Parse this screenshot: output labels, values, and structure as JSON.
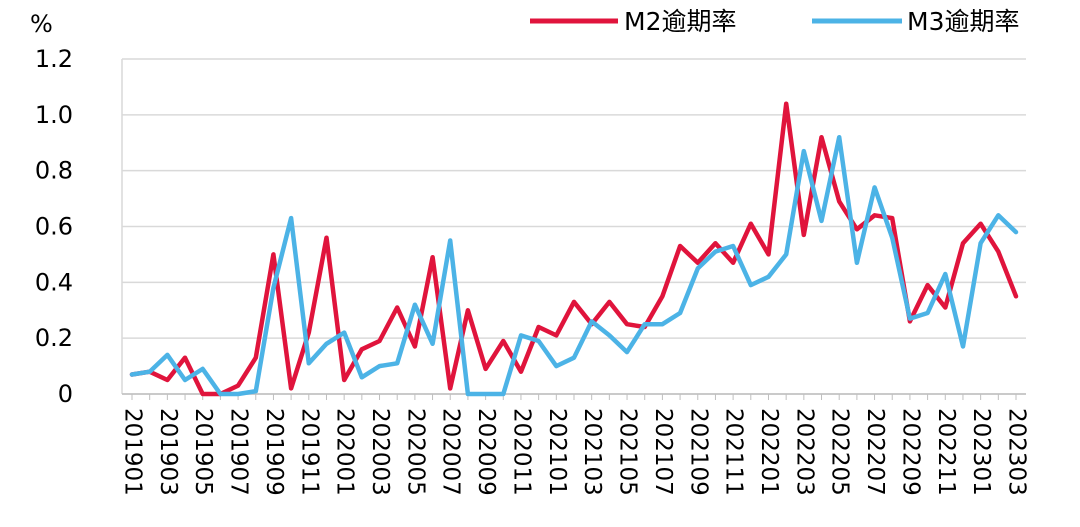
{
  "chart_data": {
    "type": "line",
    "ylabel": "%",
    "ylim": [
      0,
      1.2
    ],
    "yticks": [
      "0",
      "0.2",
      "0.4",
      "0.6",
      "0.8",
      "1.0",
      "1.2"
    ],
    "grid": "horizontal",
    "legend_position": "top-right",
    "x": [
      "201901",
      "201902",
      "201903",
      "201904",
      "201905",
      "201906",
      "201907",
      "201908",
      "201909",
      "201910",
      "201911",
      "201912",
      "202001",
      "202002",
      "202003",
      "202004",
      "202005",
      "202006",
      "202007",
      "202008",
      "202009",
      "202010",
      "202011",
      "202012",
      "202101",
      "202102",
      "202103",
      "202104",
      "202105",
      "202106",
      "202107",
      "202108",
      "202109",
      "202110",
      "202111",
      "202112",
      "202201",
      "202202",
      "202203",
      "202204",
      "202205",
      "202206",
      "202207",
      "202208",
      "202209",
      "202210",
      "202211",
      "202212",
      "202301",
      "202302",
      "202303"
    ],
    "xtick_labels": [
      "201901",
      "201903",
      "201905",
      "201907",
      "201909",
      "201911",
      "202001",
      "202003",
      "202005",
      "202007",
      "202009",
      "202011",
      "202101",
      "202103",
      "202105",
      "202107",
      "202109",
      "202111",
      "202201",
      "202203",
      "202205",
      "202207",
      "202209",
      "202211",
      "202301",
      "202303"
    ],
    "series": [
      {
        "name": "M2逾期率",
        "color": "#e0143c",
        "values": [
          0.07,
          0.08,
          0.05,
          0.13,
          0.0,
          0.0,
          0.03,
          0.13,
          0.5,
          0.02,
          0.22,
          0.56,
          0.05,
          0.16,
          0.19,
          0.31,
          0.17,
          0.49,
          0.02,
          0.3,
          0.09,
          0.19,
          0.08,
          0.24,
          0.21,
          0.33,
          0.25,
          0.33,
          0.25,
          0.24,
          0.35,
          0.53,
          0.47,
          0.54,
          0.47,
          0.61,
          0.5,
          1.04,
          0.57,
          0.92,
          0.69,
          0.59,
          0.64,
          0.63,
          0.26,
          0.39,
          0.31,
          0.54,
          0.61,
          0.51,
          0.35
        ]
      },
      {
        "name": "M3逾期率",
        "color": "#4cb3e6",
        "values": [
          0.07,
          0.08,
          0.14,
          0.05,
          0.09,
          0.0,
          0.0,
          0.01,
          0.38,
          0.63,
          0.11,
          0.18,
          0.22,
          0.06,
          0.1,
          0.11,
          0.32,
          0.18,
          0.55,
          0.0,
          0.0,
          0.0,
          0.21,
          0.19,
          0.1,
          0.13,
          0.26,
          0.21,
          0.15,
          0.25,
          0.25,
          0.29,
          0.45,
          0.51,
          0.53,
          0.39,
          0.42,
          0.5,
          0.87,
          0.62,
          0.92,
          0.47,
          0.74,
          0.56,
          0.27,
          0.29,
          0.43,
          0.17,
          0.54,
          0.64,
          0.58
        ]
      }
    ]
  }
}
